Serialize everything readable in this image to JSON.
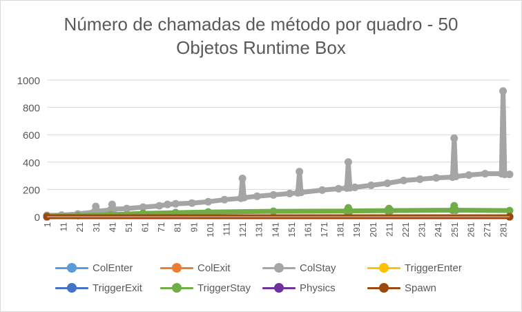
{
  "chart_data": {
    "type": "line",
    "title_line1": "Número de chamadas de método por quadro - 50",
    "title_line2": "Objetos Runtime Box",
    "xlabel": "",
    "ylabel": "",
    "x_range": [
      1,
      285
    ],
    "x_ticks": [
      "1",
      "11",
      "21",
      "31",
      "41",
      "51",
      "61",
      "71",
      "81",
      "91",
      "101",
      "111",
      "121",
      "131",
      "141",
      "151",
      "161",
      "171",
      "181",
      "191",
      "201",
      "211",
      "221",
      "231",
      "241",
      "251",
      "261",
      "271",
      "281"
    ],
    "y_ticks": [
      "0",
      "200",
      "400",
      "600",
      "800",
      "1000"
    ],
    "ylim": [
      0,
      1000
    ],
    "grid": "horizontal",
    "legend_position": "bottom",
    "series": [
      {
        "name": "ColEnter",
        "color": "#5b9bd5",
        "points": [
          [
            1,
            0
          ],
          [
            285,
            0
          ]
        ]
      },
      {
        "name": "ColExit",
        "color": "#ed7d31",
        "points": [
          [
            1,
            0
          ],
          [
            285,
            0
          ]
        ]
      },
      {
        "name": "ColStay",
        "color": "#a5a5a5",
        "points": [
          [
            1,
            10
          ],
          [
            10,
            12
          ],
          [
            20,
            20
          ],
          [
            30,
            35
          ],
          [
            31,
            75
          ],
          [
            32,
            40
          ],
          [
            40,
            50
          ],
          [
            41,
            90
          ],
          [
            42,
            55
          ],
          [
            50,
            60
          ],
          [
            60,
            70
          ],
          [
            70,
            80
          ],
          [
            75,
            90
          ],
          [
            80,
            95
          ],
          [
            90,
            100
          ],
          [
            100,
            110
          ],
          [
            110,
            125
          ],
          [
            120,
            135
          ],
          [
            121,
            280
          ],
          [
            122,
            140
          ],
          [
            130,
            150
          ],
          [
            140,
            160
          ],
          [
            150,
            170
          ],
          [
            155,
            175
          ],
          [
            156,
            330
          ],
          [
            157,
            178
          ],
          [
            170,
            195
          ],
          [
            180,
            205
          ],
          [
            185,
            210
          ],
          [
            186,
            400
          ],
          [
            187,
            212
          ],
          [
            190,
            215
          ],
          [
            200,
            230
          ],
          [
            210,
            245
          ],
          [
            220,
            265
          ],
          [
            230,
            275
          ],
          [
            240,
            285
          ],
          [
            250,
            290
          ],
          [
            251,
            575
          ],
          [
            252,
            295
          ],
          [
            260,
            305
          ],
          [
            270,
            315
          ],
          [
            280,
            315
          ],
          [
            281,
            920
          ],
          [
            282,
            310
          ],
          [
            285,
            310
          ]
        ]
      },
      {
        "name": "TriggerEnter",
        "color": "#ffc000",
        "points": [
          [
            1,
            0
          ],
          [
            285,
            0
          ]
        ]
      },
      {
        "name": "TriggerExit",
        "color": "#4472c4",
        "points": [
          [
            1,
            0
          ],
          [
            285,
            0
          ]
        ]
      },
      {
        "name": "TriggerStay",
        "color": "#70ad47",
        "points": [
          [
            1,
            5
          ],
          [
            20,
            8
          ],
          [
            40,
            15
          ],
          [
            60,
            25
          ],
          [
            80,
            30
          ],
          [
            100,
            35
          ],
          [
            140,
            40
          ],
          [
            185,
            42
          ],
          [
            186,
            65
          ],
          [
            187,
            42
          ],
          [
            210,
            45
          ],
          [
            211,
            60
          ],
          [
            212,
            45
          ],
          [
            250,
            48
          ],
          [
            251,
            80
          ],
          [
            252,
            48
          ],
          [
            285,
            45
          ]
        ]
      },
      {
        "name": "Physics",
        "color": "#7030a0",
        "points": [
          [
            1,
            0
          ],
          [
            285,
            0
          ]
        ]
      },
      {
        "name": "Spawn",
        "color": "#9e480e",
        "points": [
          [
            1,
            0
          ],
          [
            285,
            0
          ]
        ]
      }
    ]
  },
  "legend": {
    "items": [
      {
        "label": "ColEnter",
        "color": "#5b9bd5"
      },
      {
        "label": "ColExit",
        "color": "#ed7d31"
      },
      {
        "label": "ColStay",
        "color": "#a5a5a5"
      },
      {
        "label": "TriggerEnter",
        "color": "#ffc000"
      },
      {
        "label": "TriggerExit",
        "color": "#4472c4"
      },
      {
        "label": "TriggerStay",
        "color": "#70ad47"
      },
      {
        "label": "Physics",
        "color": "#7030a0"
      },
      {
        "label": "Spawn",
        "color": "#9e480e"
      }
    ]
  }
}
